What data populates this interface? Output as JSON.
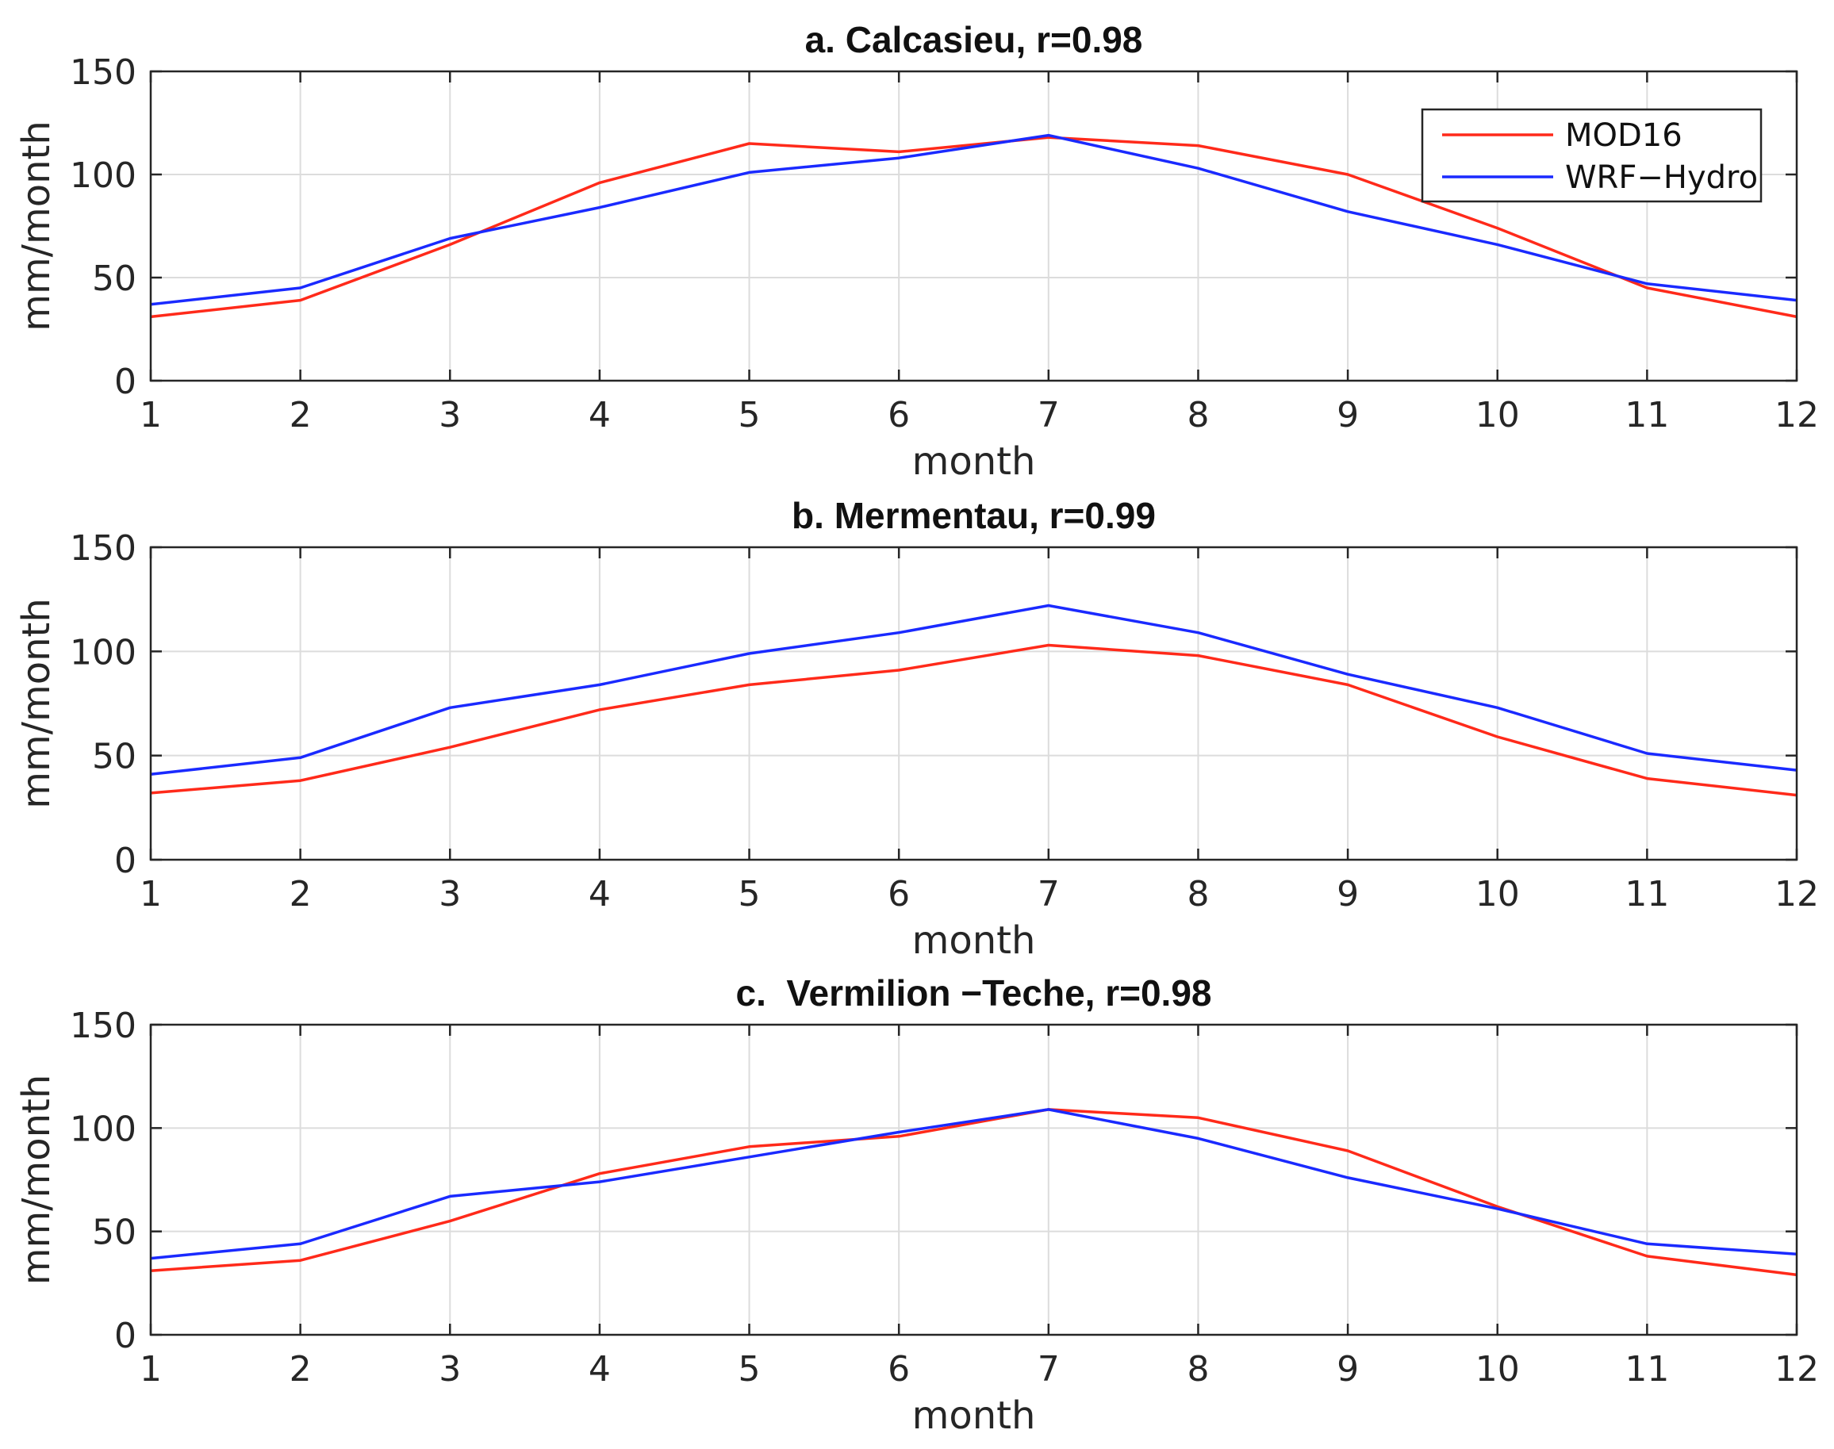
{
  "colors": {
    "mod16": "#ff2a1a",
    "wrf_hydro": "#1a2aff"
  },
  "legend": {
    "entries": [
      "MOD16",
      "WRF−Hydro"
    ]
  },
  "chart_data": [
    {
      "type": "line",
      "title": "a. Calcasieu, r=0.98",
      "xlabel": "month",
      "ylabel": "mm/month",
      "x": [
        1,
        2,
        3,
        4,
        5,
        6,
        7,
        8,
        9,
        10,
        11,
        12
      ],
      "xticks": [
        "1",
        "2",
        "3",
        "4",
        "5",
        "6",
        "7",
        "8",
        "9",
        "10",
        "11",
        "12"
      ],
      "yticks": [
        "0",
        "50",
        "100",
        "150"
      ],
      "xlim": [
        1,
        12
      ],
      "ylim": [
        0,
        150
      ],
      "grid": true,
      "legend_position": "top-right",
      "series": [
        {
          "name": "MOD16",
          "values": [
            31,
            39,
            66,
            96,
            115,
            111,
            118,
            114,
            100,
            74,
            45,
            31
          ]
        },
        {
          "name": "WRF−Hydro",
          "values": [
            37,
            45,
            69,
            84,
            101,
            108,
            119,
            103,
            82,
            66,
            47,
            39
          ]
        }
      ]
    },
    {
      "type": "line",
      "title": "b. Mermentau, r=0.99",
      "xlabel": "month",
      "ylabel": "mm/month",
      "x": [
        1,
        2,
        3,
        4,
        5,
        6,
        7,
        8,
        9,
        10,
        11,
        12
      ],
      "xticks": [
        "1",
        "2",
        "3",
        "4",
        "5",
        "6",
        "7",
        "8",
        "9",
        "10",
        "11",
        "12"
      ],
      "yticks": [
        "0",
        "50",
        "100",
        "150"
      ],
      "xlim": [
        1,
        12
      ],
      "ylim": [
        0,
        150
      ],
      "grid": true,
      "series": [
        {
          "name": "MOD16",
          "values": [
            32,
            38,
            54,
            72,
            84,
            91,
            103,
            98,
            84,
            59,
            39,
            31
          ]
        },
        {
          "name": "WRF−Hydro",
          "values": [
            41,
            49,
            73,
            84,
            99,
            109,
            122,
            109,
            89,
            73,
            51,
            43
          ]
        }
      ]
    },
    {
      "type": "line",
      "title": "c.  Vermilion −Teche, r=0.98",
      "xlabel": "month",
      "ylabel": "mm/month",
      "x": [
        1,
        2,
        3,
        4,
        5,
        6,
        7,
        8,
        9,
        10,
        11,
        12
      ],
      "xticks": [
        "1",
        "2",
        "3",
        "4",
        "5",
        "6",
        "7",
        "8",
        "9",
        "10",
        "11",
        "12"
      ],
      "yticks": [
        "0",
        "50",
        "100",
        "150"
      ],
      "xlim": [
        1,
        12
      ],
      "ylim": [
        0,
        150
      ],
      "grid": true,
      "series": [
        {
          "name": "MOD16",
          "values": [
            31,
            36,
            55,
            78,
            91,
            96,
            109,
            105,
            89,
            62,
            38,
            29
          ]
        },
        {
          "name": "WRF−Hydro",
          "values": [
            37,
            44,
            67,
            74,
            86,
            98,
            109,
            95,
            76,
            61,
            44,
            39
          ]
        }
      ]
    }
  ]
}
